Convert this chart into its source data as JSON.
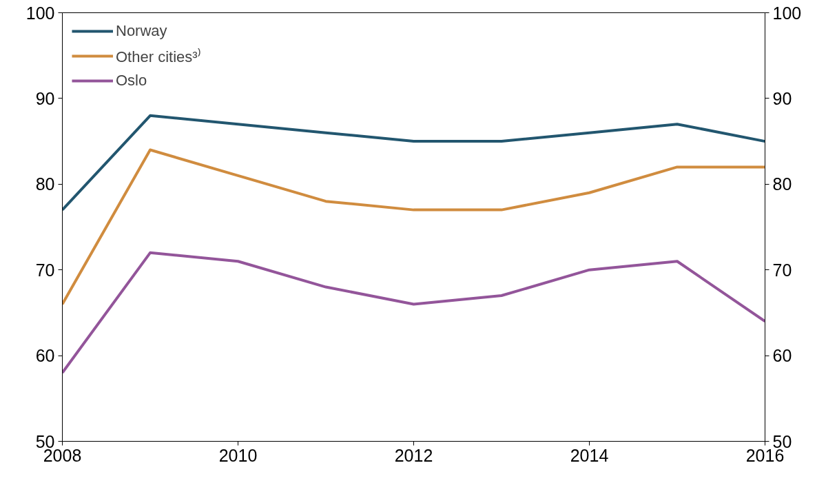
{
  "chart_data": {
    "type": "line",
    "x": [
      2008,
      2009,
      2010,
      2011,
      2012,
      2013,
      2014,
      2015,
      2016
    ],
    "series": [
      {
        "name": "Norway",
        "color": "#22566f",
        "values": [
          77,
          88,
          87,
          86,
          85,
          85,
          86,
          87,
          85
        ]
      },
      {
        "name": "Other cities³⁾",
        "color": "#d08c3f",
        "values": [
          66,
          84,
          81,
          78,
          77,
          77,
          79,
          82,
          82
        ]
      },
      {
        "name": "Oslo",
        "color": "#93559a",
        "values": [
          58,
          72,
          71,
          68,
          66,
          67,
          70,
          71,
          64
        ]
      }
    ],
    "xlim": [
      2008,
      2016
    ],
    "xticks": [
      2008,
      2010,
      2012,
      2014,
      2016
    ],
    "ylim": [
      50,
      100
    ],
    "yticks": [
      50,
      60,
      70,
      80,
      90,
      100
    ],
    "y2lim": [
      50,
      100
    ],
    "y2ticks": [
      50,
      60,
      70,
      80,
      90,
      100
    ],
    "grid": false,
    "legend": "top left",
    "marker": "none",
    "line_style": "solid"
  }
}
